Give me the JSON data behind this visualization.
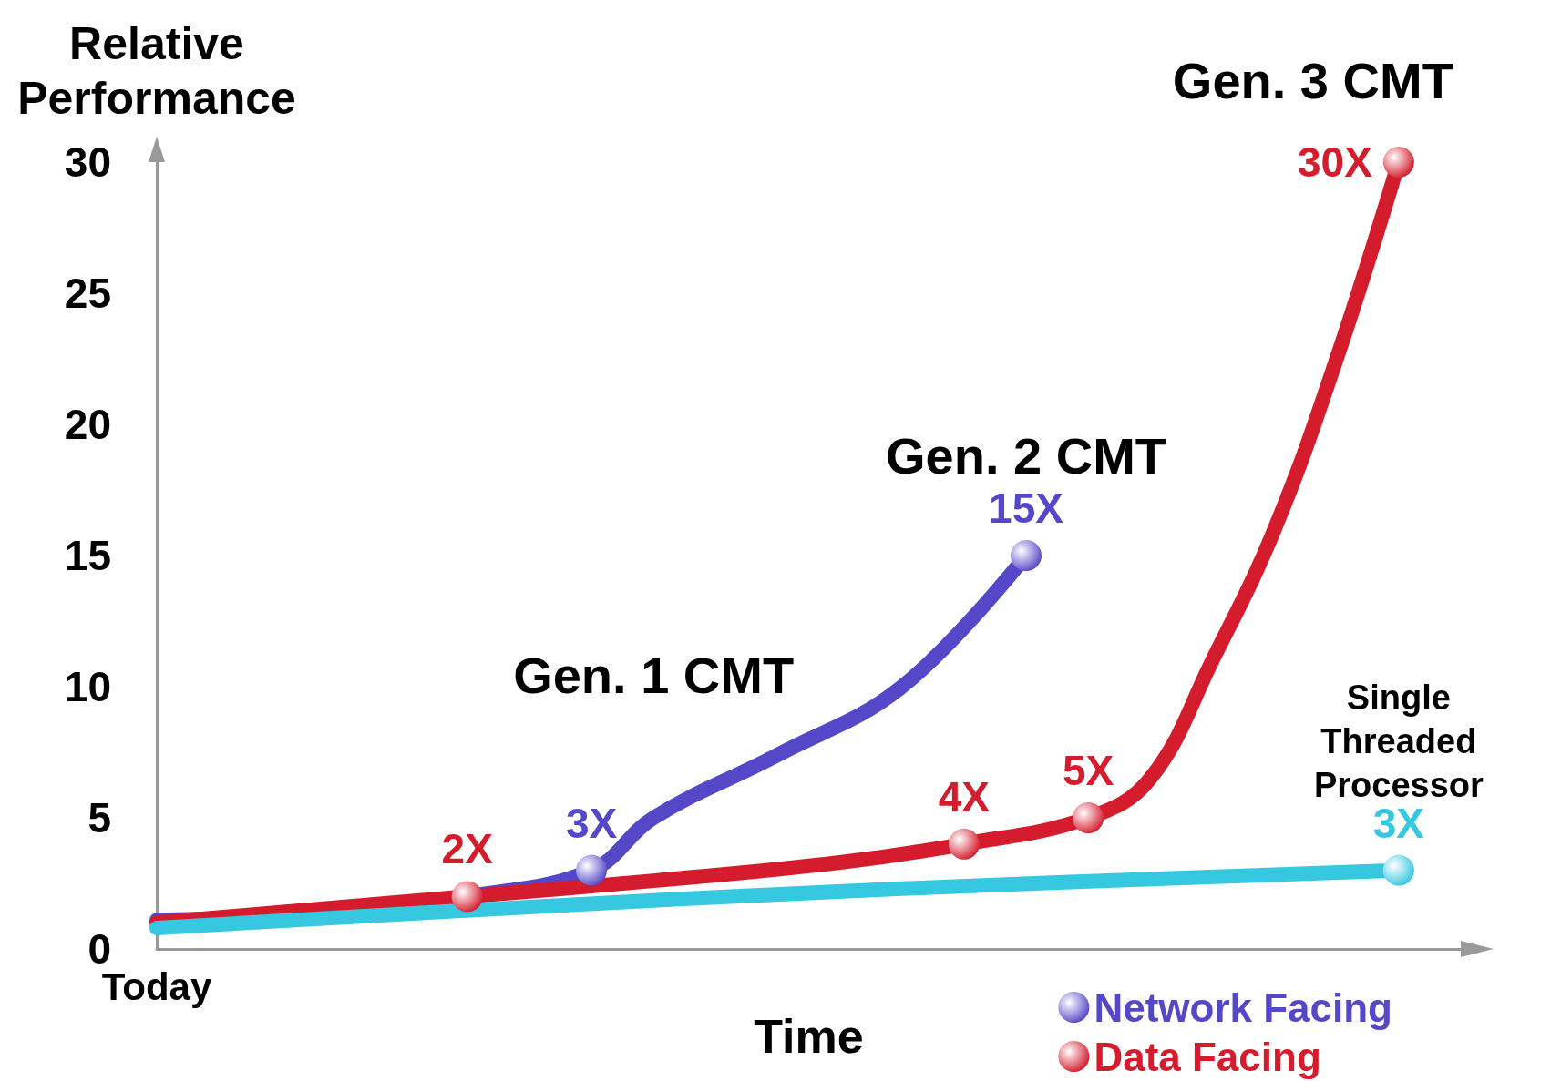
{
  "chart_data": {
    "type": "line",
    "xlabel": "Time",
    "ylabel": "Relative Performance",
    "categories": [
      "Today",
      null,
      null,
      null,
      null,
      null,
      null,
      null,
      null,
      null,
      null,
      null,
      null,
      null,
      null,
      null,
      null,
      null,
      null,
      null,
      null,
      null
    ],
    "ylim": [
      0,
      30
    ],
    "yticks": [
      0,
      5,
      10,
      15,
      20,
      25,
      30
    ],
    "grid": false,
    "legend": "bottom right",
    "line_style": "solid",
    "series": [
      {
        "name": "Network Facing",
        "color": "#5548c8",
        "values": [
          1.1,
          null,
          null,
          1.4,
          null,
          2.0,
          null,
          3,
          5,
          null,
          7.4,
          null,
          10,
          null,
          15,
          null,
          null,
          null,
          null,
          null,
          null,
          null
        ],
        "value_labels": [
          null,
          null,
          null,
          null,
          null,
          null,
          null,
          "3X",
          null,
          null,
          null,
          null,
          null,
          null,
          "15X",
          null,
          null,
          null,
          null,
          null,
          null,
          null
        ]
      },
      {
        "name": "Data Facing",
        "color": "#d41c2c",
        "values": [
          1.0,
          null,
          null,
          null,
          null,
          2,
          null,
          null,
          2.6,
          null,
          null,
          3.3,
          null,
          4,
          null,
          5,
          6.5,
          11,
          16,
          22.5,
          30,
          null
        ],
        "value_labels": [
          null,
          null,
          null,
          null,
          null,
          "2X",
          null,
          null,
          null,
          null,
          null,
          null,
          null,
          "4X",
          null,
          "5X",
          null,
          null,
          null,
          null,
          "30X",
          null
        ]
      },
      {
        "color": "#35c8e0",
        "values": [
          0.8,
          null,
          null,
          null,
          null,
          null,
          1.6,
          null,
          null,
          null,
          null,
          null,
          2.3,
          null,
          null,
          null,
          null,
          null,
          null,
          null,
          3,
          null
        ],
        "value_labels": [
          null,
          null,
          null,
          null,
          null,
          null,
          null,
          null,
          null,
          null,
          null,
          null,
          null,
          null,
          null,
          null,
          null,
          null,
          null,
          null,
          "3X",
          null
        ]
      }
    ],
    "annotations": [
      "Gen. 1 CMT",
      "Gen. 2 CMT",
      "Gen. 3 CMT",
      "Single\nThreaded\nProcessor"
    ]
  }
}
